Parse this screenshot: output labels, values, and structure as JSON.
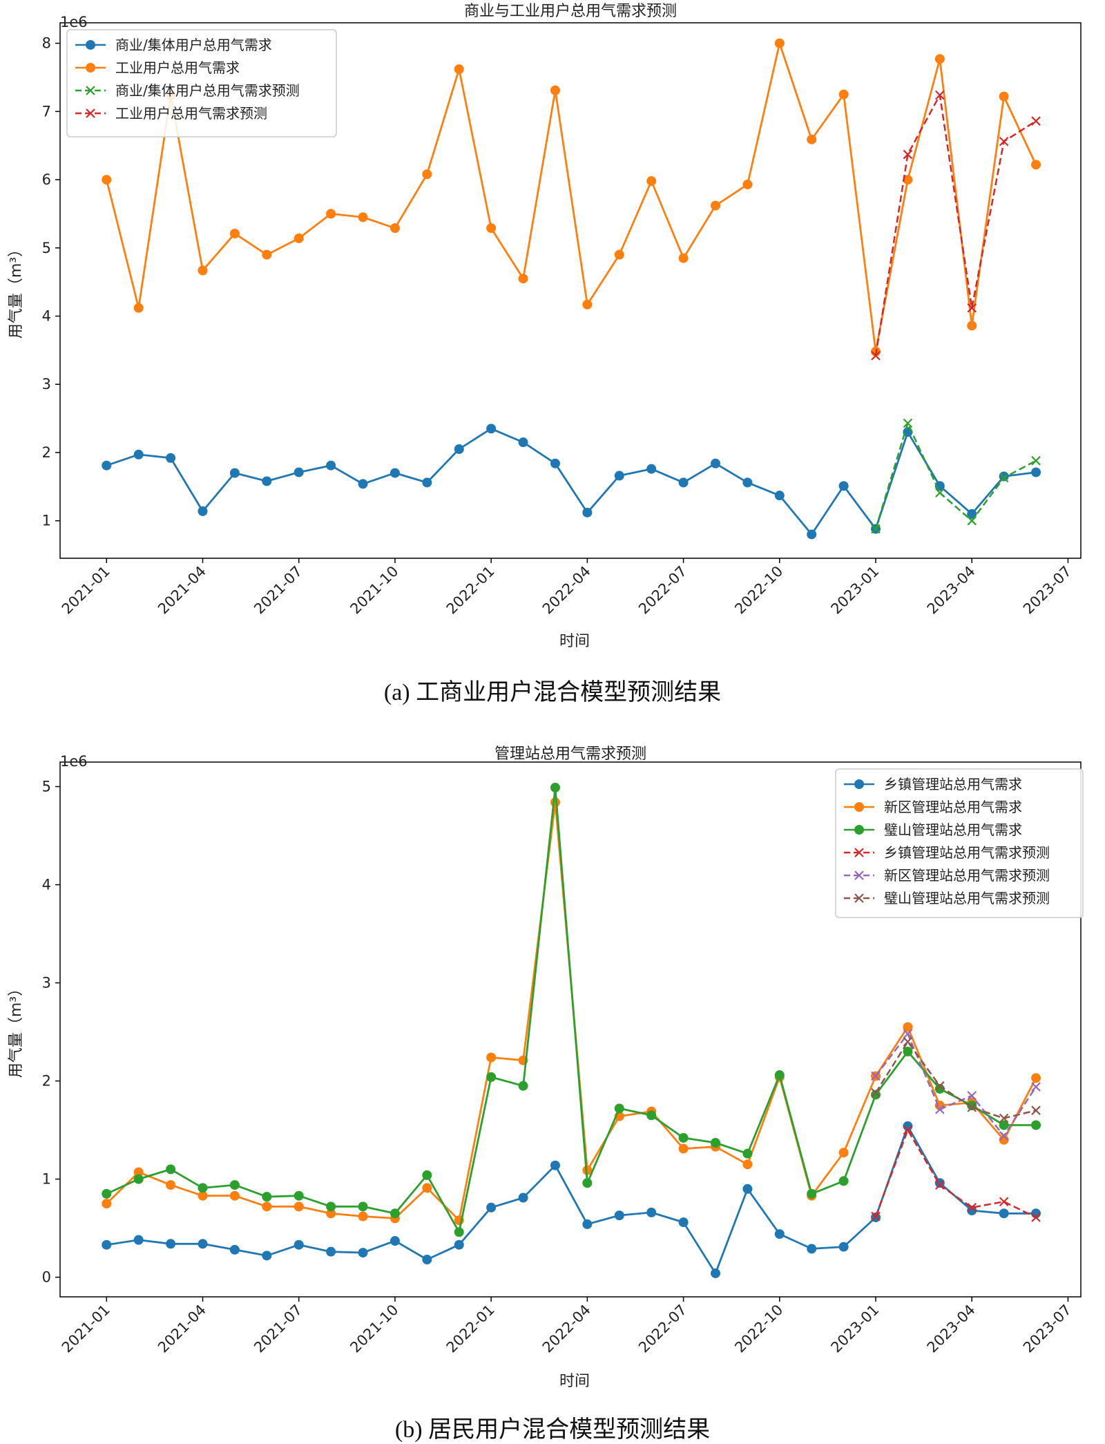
{
  "chart_data": [
    {
      "type": "line",
      "title": "商业与工业用户总用气需求预测",
      "xlabel": "时间",
      "ylabel": "用气量（m³）",
      "y_multiplier": "1e6",
      "ylim": [
        0.45,
        8.3
      ],
      "yticks": [
        1,
        2,
        3,
        4,
        5,
        6,
        7,
        8
      ],
      "xticks": [
        {
          "label": "2021-01",
          "month": 0
        },
        {
          "label": "2021-04",
          "month": 3
        },
        {
          "label": "2021-07",
          "month": 6
        },
        {
          "label": "2021-10",
          "month": 9
        },
        {
          "label": "2022-01",
          "month": 12
        },
        {
          "label": "2022-04",
          "month": 15
        },
        {
          "label": "2022-07",
          "month": 18
        },
        {
          "label": "2022-10",
          "month": 21
        },
        {
          "label": "2023-01",
          "month": 24
        },
        {
          "label": "2023-04",
          "month": 27
        },
        {
          "label": "2023-07",
          "month": 30
        }
      ],
      "xlim": [
        -1.45,
        30.4
      ],
      "legend_position": "upper-left",
      "series": [
        {
          "name": "商业/集体用户总用气需求",
          "color": "#1f77b4",
          "style": "solid-marker",
          "start_month": 0,
          "values": [
            1.81,
            1.97,
            1.92,
            1.14,
            1.7,
            1.58,
            1.71,
            1.81,
            1.54,
            1.7,
            1.56,
            2.05,
            2.35,
            2.15,
            1.84,
            1.12,
            1.66,
            1.76,
            1.56,
            1.84,
            1.56,
            1.37,
            0.8,
            1.51,
            0.88,
            2.3,
            1.51,
            1.1,
            1.65,
            1.71
          ]
        },
        {
          "name": "工业用户总用气需求",
          "color": "#ff7f0e",
          "style": "solid-marker",
          "start_month": 0,
          "values": [
            6.0,
            4.12,
            7.24,
            4.67,
            5.21,
            4.9,
            5.14,
            5.5,
            5.45,
            5.29,
            6.08,
            7.62,
            5.29,
            4.55,
            7.31,
            4.17,
            4.9,
            5.98,
            4.85,
            5.62,
            5.93,
            8.0,
            6.59,
            7.25,
            3.48,
            6.0,
            7.77,
            3.86,
            7.22,
            6.22
          ]
        },
        {
          "name": "商业/集体用户总用气需求预测",
          "color": "#2ca02c",
          "style": "dashed-x",
          "start_month": 24,
          "values": [
            0.88,
            2.43,
            1.41,
            1.0,
            1.63,
            1.88
          ]
        },
        {
          "name": "工业用户总用气需求预测",
          "color": "#d62728",
          "style": "dashed-x",
          "start_month": 24,
          "values": [
            3.42,
            6.37,
            7.24,
            4.12,
            6.56,
            6.86
          ]
        }
      ],
      "caption": "(a) 工商业用户混合模型预测结果"
    },
    {
      "type": "line",
      "title": "管理站总用气需求预测",
      "xlabel": "时间",
      "ylabel": "用气量（m³）",
      "y_multiplier": "1e6",
      "ylim": [
        -0.2,
        5.25
      ],
      "yticks": [
        0,
        1,
        2,
        3,
        4,
        5
      ],
      "xticks": [
        {
          "label": "2021-01",
          "month": 0
        },
        {
          "label": "2021-04",
          "month": 3
        },
        {
          "label": "2021-07",
          "month": 6
        },
        {
          "label": "2021-10",
          "month": 9
        },
        {
          "label": "2022-01",
          "month": 12
        },
        {
          "label": "2022-04",
          "month": 15
        },
        {
          "label": "2022-07",
          "month": 18
        },
        {
          "label": "2022-10",
          "month": 21
        },
        {
          "label": "2023-01",
          "month": 24
        },
        {
          "label": "2023-04",
          "month": 27
        },
        {
          "label": "2023-07",
          "month": 30
        }
      ],
      "xlim": [
        -1.45,
        30.4
      ],
      "legend_position": "upper-right",
      "series": [
        {
          "name": "乡镇管理站总用气需求",
          "color": "#1f77b4",
          "style": "solid-marker",
          "start_month": 0,
          "values": [
            0.33,
            0.38,
            0.34,
            0.34,
            0.28,
            0.22,
            0.33,
            0.26,
            0.25,
            0.37,
            0.18,
            0.33,
            0.71,
            0.81,
            1.14,
            0.54,
            0.63,
            0.66,
            0.56,
            0.04,
            0.9,
            0.44,
            0.29,
            0.31,
            0.61,
            1.54,
            0.96,
            0.68,
            0.65,
            0.65
          ]
        },
        {
          "name": "新区管理站总用气需求",
          "color": "#ff7f0e",
          "style": "solid-marker",
          "start_month": 0,
          "values": [
            0.75,
            1.07,
            0.94,
            0.83,
            0.83,
            0.72,
            0.72,
            0.65,
            0.62,
            0.6,
            0.91,
            0.58,
            2.24,
            2.21,
            4.84,
            1.09,
            1.64,
            1.69,
            1.31,
            1.33,
            1.15,
            2.04,
            0.83,
            1.27,
            2.05,
            2.55,
            1.75,
            1.78,
            1.4,
            2.03
          ]
        },
        {
          "name": "璧山管理站总用气需求",
          "color": "#2ca02c",
          "style": "solid-marker",
          "start_month": 0,
          "values": [
            0.85,
            1.0,
            1.1,
            0.91,
            0.94,
            0.82,
            0.83,
            0.72,
            0.72,
            0.65,
            1.04,
            0.46,
            2.04,
            1.95,
            4.99,
            0.96,
            1.72,
            1.65,
            1.42,
            1.37,
            1.26,
            2.06,
            0.85,
            0.98,
            1.86,
            2.3,
            1.92,
            1.75,
            1.55,
            1.55
          ]
        },
        {
          "name": "乡镇管理站总用气需求预测",
          "color": "#d62728",
          "style": "dashed-x",
          "start_month": 24,
          "values": [
            0.62,
            1.5,
            0.94,
            0.71,
            0.77,
            0.61
          ]
        },
        {
          "name": "新区管理站总用气需求预测",
          "color": "#9467bd",
          "style": "dashed-x",
          "start_month": 24,
          "values": [
            2.05,
            2.48,
            1.71,
            1.85,
            1.44,
            1.94
          ]
        },
        {
          "name": "璧山管理站总用气需求预测",
          "color": "#8c564b",
          "style": "dashed-x",
          "start_month": 24,
          "values": [
            1.88,
            2.4,
            1.95,
            1.73,
            1.62,
            1.7
          ]
        }
      ],
      "caption": "(b)  居民用户混合模型预测结果"
    }
  ]
}
